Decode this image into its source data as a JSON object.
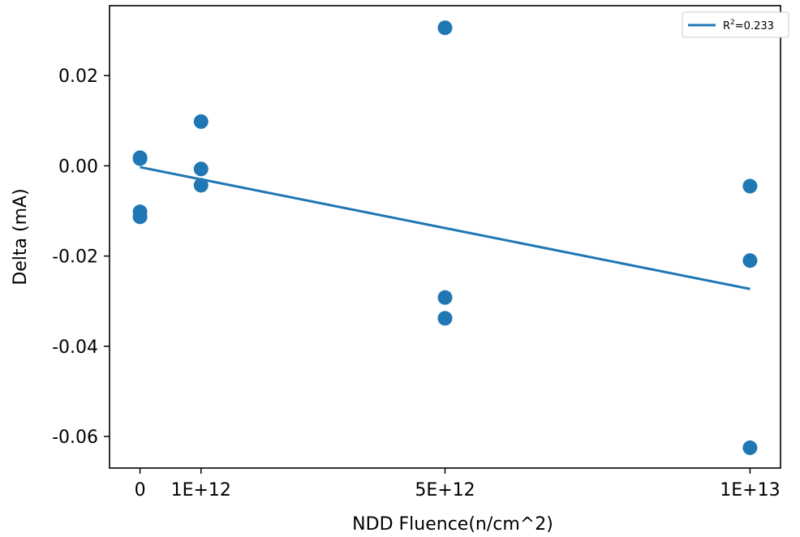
{
  "chart_data": {
    "type": "scatter",
    "xlabel": "NDD Fluence(n/cm^2)",
    "ylabel": "Delta (mA)",
    "xlim": [
      -500000000000.0,
      10500000000000.0
    ],
    "ylim": [
      -0.067,
      0.0355
    ],
    "x_ticks": [
      {
        "value": 0,
        "label": "0"
      },
      {
        "value": 1000000000000.0,
        "label": "1E+12"
      },
      {
        "value": 5000000000000.0,
        "label": "5E+12"
      },
      {
        "value": 10000000000000.0,
        "label": "1E+13"
      }
    ],
    "y_ticks": [
      {
        "value": 0.02,
        "label": "0.02"
      },
      {
        "value": 0.0,
        "label": "0.00"
      },
      {
        "value": -0.02,
        "label": "-0.02"
      },
      {
        "value": -0.04,
        "label": "-0.04"
      },
      {
        "value": -0.06,
        "label": "-0.06"
      }
    ],
    "grid": false,
    "legend_position": "top-right",
    "color": "#1f77b4",
    "points": [
      {
        "x": 0,
        "y": 0.0018
      },
      {
        "x": 0,
        "y": 0.0016
      },
      {
        "x": 0,
        "y": -0.0102
      },
      {
        "x": 0,
        "y": -0.0113
      },
      {
        "x": 1000000000000.0,
        "y": 0.0098
      },
      {
        "x": 1000000000000.0,
        "y": -0.0007
      },
      {
        "x": 1000000000000.0,
        "y": -0.0043
      },
      {
        "x": 5000000000000.0,
        "y": 0.0306
      },
      {
        "x": 5000000000000.0,
        "y": -0.0292
      },
      {
        "x": 5000000000000.0,
        "y": -0.0338
      },
      {
        "x": 10000000000000.0,
        "y": -0.0045
      },
      {
        "x": 10000000000000.0,
        "y": -0.021
      },
      {
        "x": 10000000000000.0,
        "y": -0.0625
      }
    ],
    "fit_line": {
      "label": "R²=0.233",
      "label_base": "R",
      "label_sup": "2",
      "label_rest": "=0.233",
      "x": [
        0,
        10000000000000.0
      ],
      "y": [
        -0.0003,
        -0.0273
      ]
    }
  }
}
